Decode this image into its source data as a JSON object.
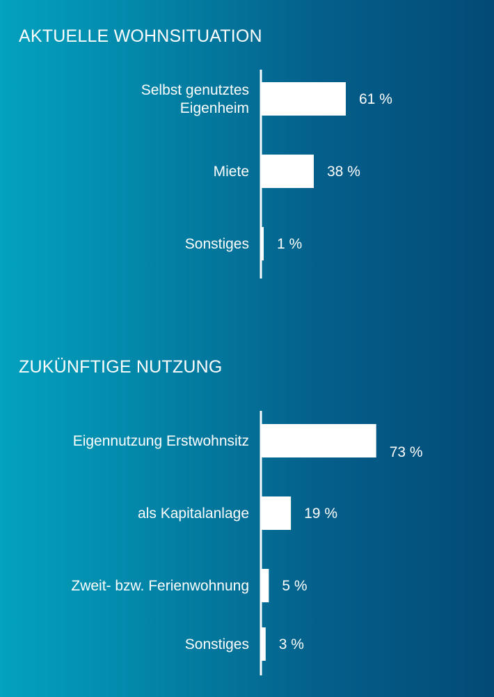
{
  "chart_data": [
    {
      "type": "bar",
      "orientation": "horizontal",
      "title": "AKTUELLE WOHNSITUATION",
      "categories": [
        [
          "Selbst genutztes",
          "Eigenheim"
        ],
        [
          "Miete"
        ],
        [
          "Sonstiges"
        ]
      ],
      "values": [
        61,
        38,
        1
      ],
      "value_labels": [
        "61 %",
        "38 %",
        "1 %"
      ],
      "unit": "%",
      "xlim": [
        0,
        100
      ],
      "grid": false,
      "bar_color": "#ffffff"
    },
    {
      "type": "bar",
      "orientation": "horizontal",
      "title": "ZUKÜNFTIGE NUTZUNG",
      "categories": [
        [
          "Eigennutzung Erstwohnsitz"
        ],
        [
          "als Kapitalanlage"
        ],
        [
          "Zweit- bzw. Ferienwohnung"
        ],
        [
          "Sonstiges"
        ]
      ],
      "values": [
        73,
        19,
        5,
        3
      ],
      "value_labels": [
        "73 %",
        "19 %",
        "5 %",
        "3 %"
      ],
      "unit": "%",
      "xlim": [
        0,
        100
      ],
      "grid": false,
      "bar_color": "#ffffff"
    }
  ],
  "colors": {
    "background_left": "#03a2bf",
    "background_right": "#034a76",
    "foreground": "#ffffff"
  }
}
